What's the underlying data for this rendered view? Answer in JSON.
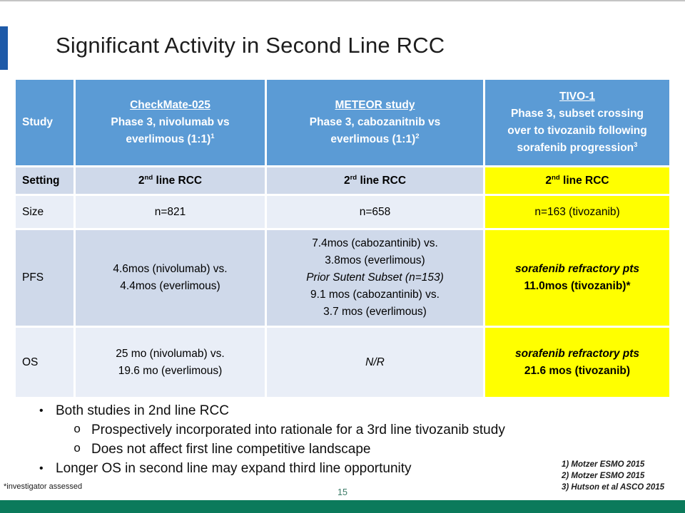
{
  "slide": {
    "title": "Significant Activity in Second Line RCC",
    "footnote": "*investigator assessed",
    "page_number": "15",
    "references": [
      "1) Motzer ESMO 2015",
      "2) Motzer ESMO 2015",
      "3) Hutson et al ASCO 2015"
    ]
  },
  "colors": {
    "header_blue": "#5B9BD5",
    "band_dark": "#CFD9EA",
    "band_light": "#E9EEF7",
    "highlight_yellow": "#FFFF00",
    "accent_bar_blue": "#1E5AA8",
    "footer_bar_green": "#0B7A5B",
    "page_number_green": "#3A7A66"
  },
  "table": {
    "column_keys": [
      "label",
      "checkmate025",
      "meteor",
      "tivo1"
    ],
    "rows": [
      {
        "key": "header",
        "cells": [
          {
            "lines": [
              {
                "text": "Study"
              }
            ]
          },
          {
            "lines": [
              {
                "text": "CheckMate-025",
                "underline": true
              },
              {
                "text": "Phase 3, nivolumab vs"
              },
              {
                "text": "everlimous (1:1)^{1}"
              }
            ]
          },
          {
            "lines": [
              {
                "text": "METEOR study",
                "underline": true
              },
              {
                "text": "Phase 3, cabozanitnib vs"
              },
              {
                "text": "everlimous (1:1)^{2}"
              }
            ]
          },
          {
            "lines": [
              {
                "text": "TIVO-1",
                "underline": true
              },
              {
                "text": "Phase 3, subset crossing"
              },
              {
                "text": "over to tivozanib following"
              },
              {
                "text": "sorafenib progression^{3}"
              }
            ]
          }
        ]
      },
      {
        "key": "setting",
        "cells": [
          {
            "lines": [
              {
                "text": "Setting",
                "bold": true
              }
            ]
          },
          {
            "lines": [
              {
                "text": "2^{nd} line RCC",
                "bold": true
              }
            ]
          },
          {
            "lines": [
              {
                "text": "2^{rd} line RCC",
                "bold": true
              }
            ]
          },
          {
            "highlight": true,
            "lines": [
              {
                "text": "2^{nd} line RCC",
                "bold": true
              }
            ]
          }
        ]
      },
      {
        "key": "size",
        "cells": [
          {
            "lines": [
              {
                "text": "Size"
              }
            ]
          },
          {
            "lines": [
              {
                "text": "n=821"
              }
            ]
          },
          {
            "lines": [
              {
                "text": "n=658"
              }
            ]
          },
          {
            "highlight": true,
            "lines": [
              {
                "text": "n=163 (tivozanib)"
              }
            ]
          }
        ]
      },
      {
        "key": "pfs",
        "cells": [
          {
            "lines": [
              {
                "text": "PFS"
              }
            ]
          },
          {
            "lines": [
              {
                "text": "4.6mos (nivolumab) vs."
              },
              {
                "text": "4.4mos (everlimous)"
              }
            ]
          },
          {
            "lines": [
              {
                "text": "7.4mos (cabozantinib) vs."
              },
              {
                "text": "3.8mos (everlimous)"
              },
              {
                "text": "Prior Sutent Subset (n=153)",
                "italic": true
              },
              {
                "text": "9.1 mos (cabozantinib) vs."
              },
              {
                "text": "3.7 mos (everlimous)"
              }
            ]
          },
          {
            "highlight": true,
            "lines": [
              {
                "text": "sorafenib refractory pts",
                "italic": true,
                "bold": true
              },
              {
                "text": "11.0mos (tivozanib)*",
                "bold": true
              }
            ]
          }
        ]
      },
      {
        "key": "os",
        "cells": [
          {
            "lines": [
              {
                "text": "OS"
              }
            ]
          },
          {
            "lines": [
              {
                "text": "25 mo (nivolumab) vs."
              },
              {
                "text": "19.6 mo (everlimous)"
              }
            ]
          },
          {
            "lines": [
              {
                "text": "N/R",
                "italic": true
              }
            ]
          },
          {
            "highlight": true,
            "lines": [
              {
                "text": "sorafenib refractory pts",
                "italic": true,
                "bold": true
              },
              {
                "text": "21.6 mos (tivozanib)",
                "bold": true
              }
            ]
          }
        ]
      }
    ]
  },
  "bullets": [
    {
      "level": 1,
      "marker": "•",
      "text": "Both studies in 2nd line RCC"
    },
    {
      "level": 2,
      "marker": "o",
      "text": "Prospectively incorporated into rationale for a 3rd line tivozanib study"
    },
    {
      "level": 2,
      "marker": "o",
      "text": "Does not affect first line competitive landscape"
    },
    {
      "level": 1,
      "marker": "•",
      "text": "Longer OS in second line may expand third line opportunity"
    }
  ]
}
